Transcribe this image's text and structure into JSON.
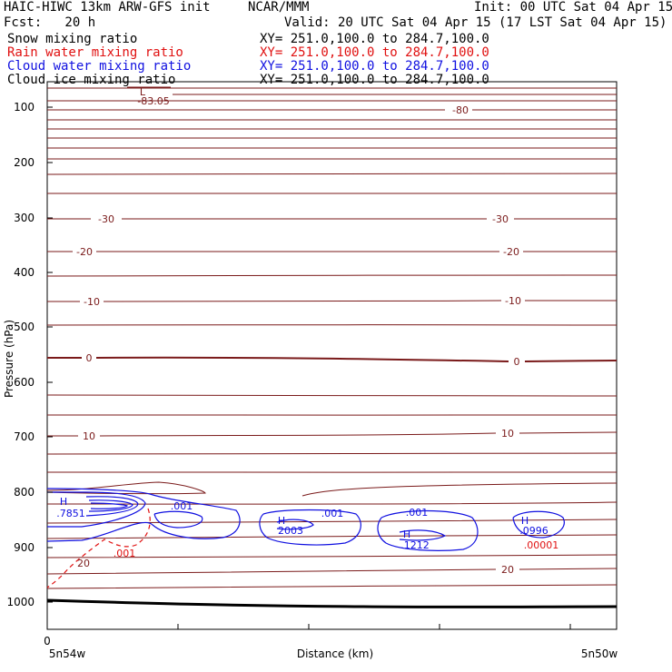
{
  "header": {
    "model": "HAIC-HIWC 13km ARW-GFS init",
    "org": "NCAR/MMM",
    "init": "Init: 00 UTC Sat 04 Apr 15",
    "fcst": "Fcst:   20 h",
    "valid": "Valid: 20 UTC Sat 04 Apr 15 (17 LST Sat 04 Apr 15)"
  },
  "fields": [
    {
      "label": "Snow mixing ratio",
      "xy": "XY= 251.0,100.0 to 284.7,100.0",
      "color": "#000000"
    },
    {
      "label": "Rain water mixing ratio",
      "xy": "XY= 251.0,100.0 to 284.7,100.0",
      "color": "#e01010"
    },
    {
      "label": "Cloud water mixing ratio",
      "xy": "XY= 251.0,100.0 to 284.7,100.0",
      "color": "#1010e0"
    },
    {
      "label": "Cloud ice mixing ratio",
      "xy": "XY= 251.0,100.0 to 284.7,100.0",
      "color": "#000000"
    }
  ],
  "chart_data": {
    "type": "contour",
    "ylabel": "Pressure (hPa)",
    "xlabel": "Distance (km)",
    "y_ticks": [
      100,
      200,
      300,
      400,
      500,
      600,
      700,
      800,
      900,
      1000
    ],
    "x_tick_label": "0",
    "x_left_label": "5n54w",
    "x_right_label": "5n50w",
    "ylim": [
      1050,
      50
    ],
    "colors": {
      "temperature": "#7a1a1a",
      "cloud_water": "#1010e0",
      "rain": "#e01010",
      "ground": "#000000"
    },
    "temperature_labels": [
      "-83.05",
      "L",
      "-80",
      "-30",
      "-30",
      "-20",
      "-20",
      "-10",
      "-10",
      "0",
      "0",
      "10",
      "10",
      "20",
      "20"
    ],
    "cloud_water_labels": [
      "H",
      ".7851",
      ".001",
      "H",
      "2003",
      ".001",
      ".001",
      "H",
      ".1212",
      "H",
      ".0996"
    ],
    "rain_labels": [
      ".001",
      ".00001"
    ]
  }
}
